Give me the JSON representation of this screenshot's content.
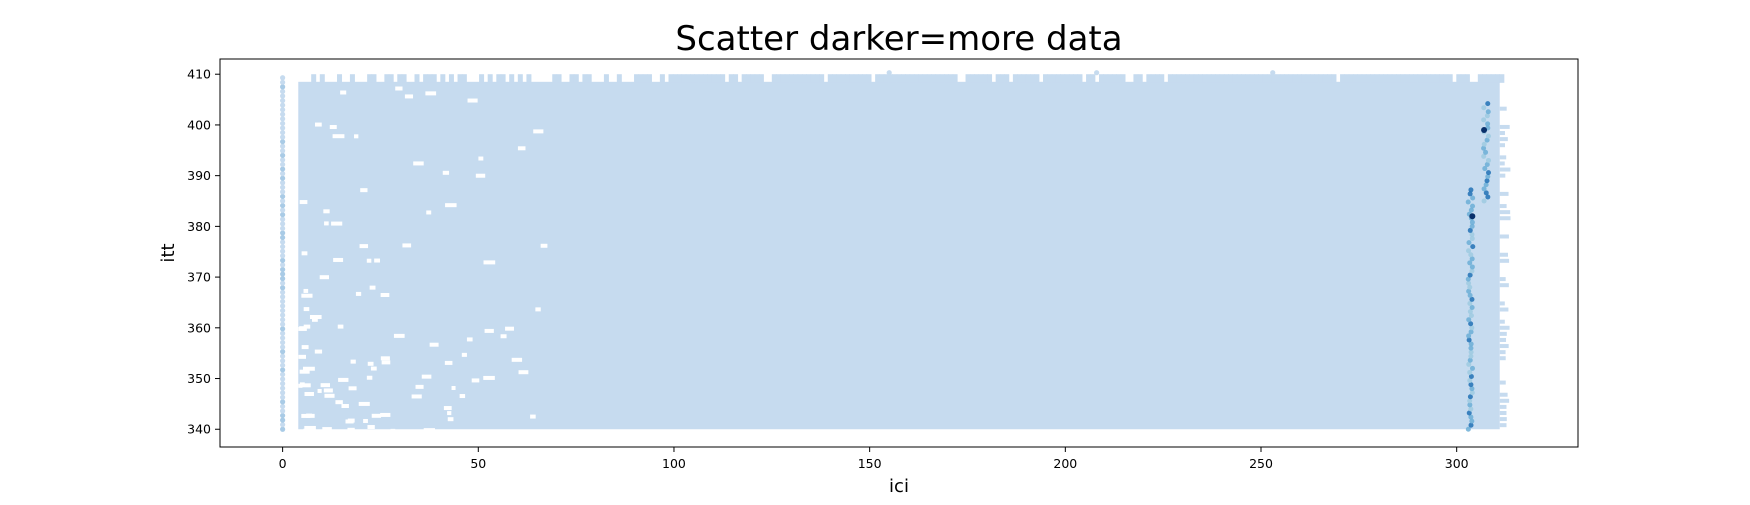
{
  "chart_data": {
    "type": "hexbin",
    "title": "Scatter darker=more data",
    "xlabel": "ici",
    "ylabel": "itt",
    "xlim": [
      -16,
      331
    ],
    "ylim": [
      336.5,
      413
    ],
    "xticks": [
      0,
      50,
      100,
      150,
      200,
      250,
      300
    ],
    "yticks": [
      340,
      350,
      360,
      370,
      380,
      390,
      400,
      410
    ],
    "grid": false,
    "colormap": "Blues",
    "colors": {
      "base": "#c6dbef",
      "mid": "#6baed6",
      "high": "#2171b5",
      "max": "#08306b"
    },
    "data_extent": {
      "x": [
        0,
        314
      ],
      "y": [
        340,
        410
      ]
    },
    "hotspots": [
      {
        "x": 303.5,
        "y_range": [
          340,
          388
        ],
        "level": "high"
      },
      {
        "x": 307.5,
        "y_range": [
          385,
          405
        ],
        "level": "high"
      },
      {
        "x": 307,
        "y": 399,
        "level": "max"
      },
      {
        "x": 304,
        "y": 382,
        "level": "max"
      }
    ]
  }
}
